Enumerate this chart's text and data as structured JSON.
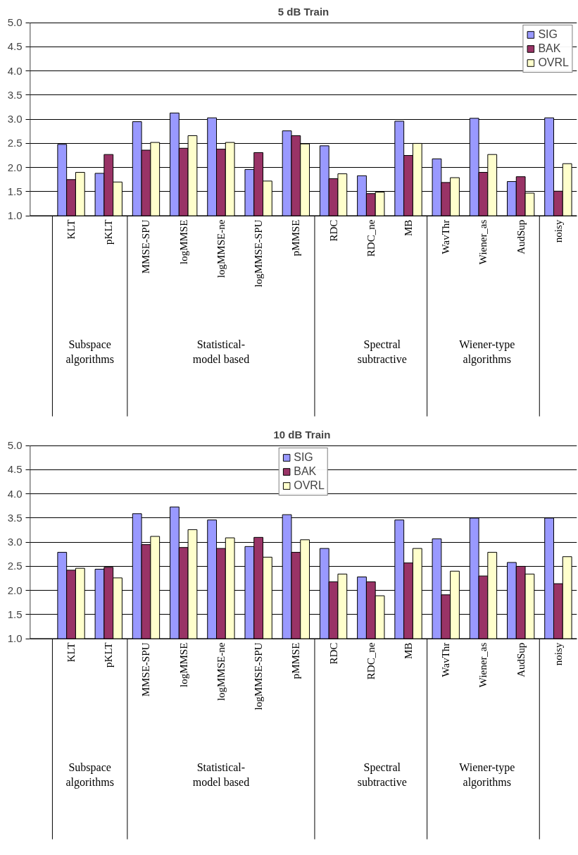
{
  "chart_data": [
    {
      "type": "bar",
      "title": "5 dB Train",
      "categories": [
        "KLT",
        "pKLT",
        "MMSE-SPU",
        "logMMSE",
        "logMMSE-ne",
        "logMMSE-SPU",
        "pMMSE",
        "RDC",
        "RDC_ne",
        "MB",
        "WavThr",
        "Wiener_as",
        "AudSup",
        "noisy"
      ],
      "series": [
        {
          "name": "SIG",
          "color": "#9999ff",
          "values": [
            2.48,
            1.88,
            2.95,
            3.13,
            3.03,
            1.96,
            2.76,
            2.45,
            1.83,
            2.96,
            2.18,
            3.02,
            1.71,
            3.03
          ]
        },
        {
          "name": "BAK",
          "color": "#993366",
          "values": [
            1.75,
            2.27,
            2.36,
            2.4,
            2.38,
            2.31,
            2.66,
            1.77,
            1.46,
            2.25,
            1.69,
            1.9,
            1.81,
            1.51
          ]
        },
        {
          "name": "OVRL",
          "color": "#ffffcc",
          "values": [
            1.9,
            1.7,
            2.52,
            2.66,
            2.52,
            1.72,
            2.49,
            1.87,
            1.49,
            2.5,
            1.79,
            2.27,
            1.47,
            2.08
          ]
        }
      ],
      "ylim": [
        1.0,
        5.0
      ],
      "yticks": [
        {
          "value": 1.0,
          "label": "1.0"
        },
        {
          "value": 1.5,
          "label": "1.5"
        },
        {
          "value": 2.0,
          "label": "2.0"
        },
        {
          "value": 2.5,
          "label": "2.5"
        },
        {
          "value": 3.0,
          "label": "3.0"
        },
        {
          "value": 3.5,
          "label": "3.5"
        },
        {
          "value": 4.0,
          "label": "4.0"
        },
        {
          "value": 4.5,
          "label": "4.5"
        },
        {
          "value": 5.0,
          "label": "5.0"
        }
      ],
      "grid": "y",
      "legend": "top right",
      "annotations": [
        "Subspace\nalgorithms",
        "Statistical-\nmodel based",
        "Spectral\nsubtractive",
        "Wiener-type\nalgorithms"
      ]
    },
    {
      "type": "bar",
      "title": "10  dB Train",
      "categories": [
        "KLT",
        "pKLT",
        "MMSE-SPU",
        "logMMSE",
        "logMMSE-ne",
        "logMMSE-SPU",
        "pMMSE",
        "RDC",
        "RDC_ne",
        "MB",
        "WavThr",
        "Wiener_as",
        "AudSup",
        "noisy"
      ],
      "series": [
        {
          "name": "SIG",
          "color": "#9999ff",
          "values": [
            2.79,
            2.44,
            3.59,
            3.73,
            3.46,
            2.91,
            3.57,
            2.87,
            2.28,
            3.46,
            3.07,
            3.5,
            2.58,
            3.5
          ]
        },
        {
          "name": "BAK",
          "color": "#993366",
          "values": [
            2.42,
            2.48,
            2.95,
            2.89,
            2.87,
            3.1,
            2.79,
            2.18,
            2.18,
            2.57,
            1.91,
            2.3,
            2.5,
            2.14
          ]
        },
        {
          "name": "OVRL",
          "color": "#ffffcc",
          "values": [
            2.46,
            2.26,
            3.12,
            3.26,
            3.09,
            2.69,
            3.05,
            2.34,
            1.89,
            2.87,
            2.4,
            2.79,
            2.34,
            2.7
          ]
        }
      ],
      "ylim": [
        1.0,
        5.0
      ],
      "yticks": [
        {
          "value": 1.0,
          "label": "1.0"
        },
        {
          "value": 1.5,
          "label": "1.5"
        },
        {
          "value": 2.0,
          "label": "2.0"
        },
        {
          "value": 2.5,
          "label": "2.5"
        },
        {
          "value": 3.0,
          "label": "3.0"
        },
        {
          "value": 3.5,
          "label": "3.5"
        },
        {
          "value": 4.0,
          "label": "4.0"
        },
        {
          "value": 4.5,
          "label": "4.5"
        },
        {
          "value": 5.0,
          "label": "5.0"
        }
      ],
      "grid": "y",
      "legend": "top",
      "annotations": [
        "Subspace\nalgorithms",
        "Statistical-\nmodel based",
        "Spectral\nsubtractive",
        "Wiener-type\nalgorithms"
      ]
    }
  ]
}
